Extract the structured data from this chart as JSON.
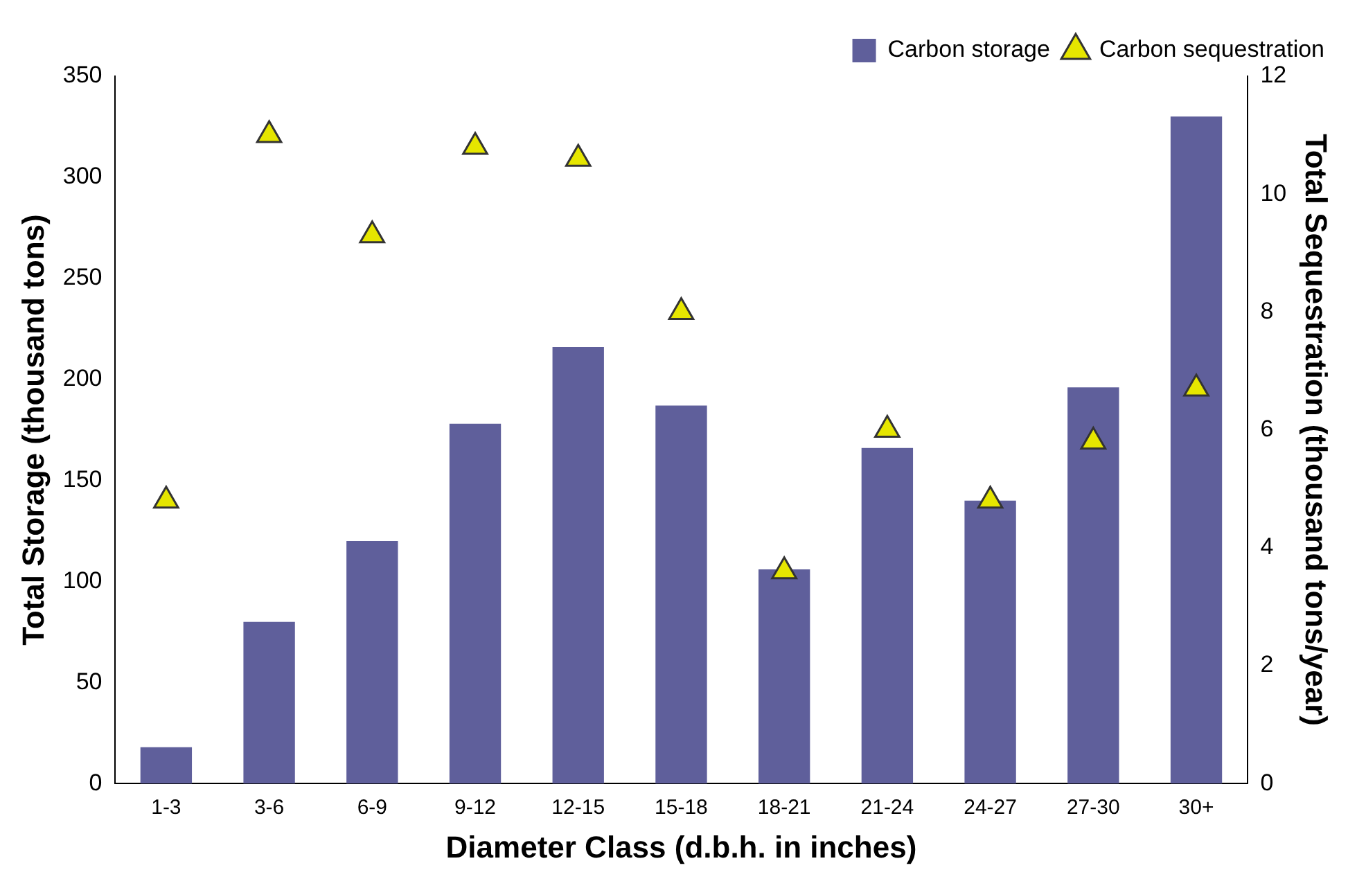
{
  "chart_data": {
    "type": "bar",
    "xlabel": "Diameter Class (d.b.h. in inches)",
    "ylabel": "Total Storage (thousand tons)",
    "y2label": "Total Sequestration (thousand tons/year)",
    "categories": [
      "1-3",
      "3-6",
      "6-9",
      "9-12",
      "12-15",
      "15-18",
      "18-21",
      "21-24",
      "24-27",
      "27-30",
      "30+"
    ],
    "series": [
      {
        "name": "Carbon storage",
        "color": "#5f5f9b",
        "values": [
          18,
          80,
          120,
          178,
          216,
          187,
          106,
          166,
          140,
          196,
          330
        ]
      },
      {
        "name": "Carbon sequestration",
        "type": "scatter",
        "axis": "y2",
        "color": "#e6e600",
        "marker": "triangle",
        "values": [
          4.8,
          11.0,
          9.3,
          10.8,
          10.6,
          8.0,
          3.6,
          6.0,
          4.8,
          5.8,
          6.7
        ]
      }
    ],
    "ylim": [
      0,
      350
    ],
    "yticks": [
      0,
      50,
      100,
      150,
      200,
      250,
      300,
      350
    ],
    "y2lim": [
      0,
      12
    ],
    "y2ticks": [
      0,
      2,
      4,
      6,
      8,
      10,
      12
    ],
    "grid": false,
    "legend": "top right"
  }
}
